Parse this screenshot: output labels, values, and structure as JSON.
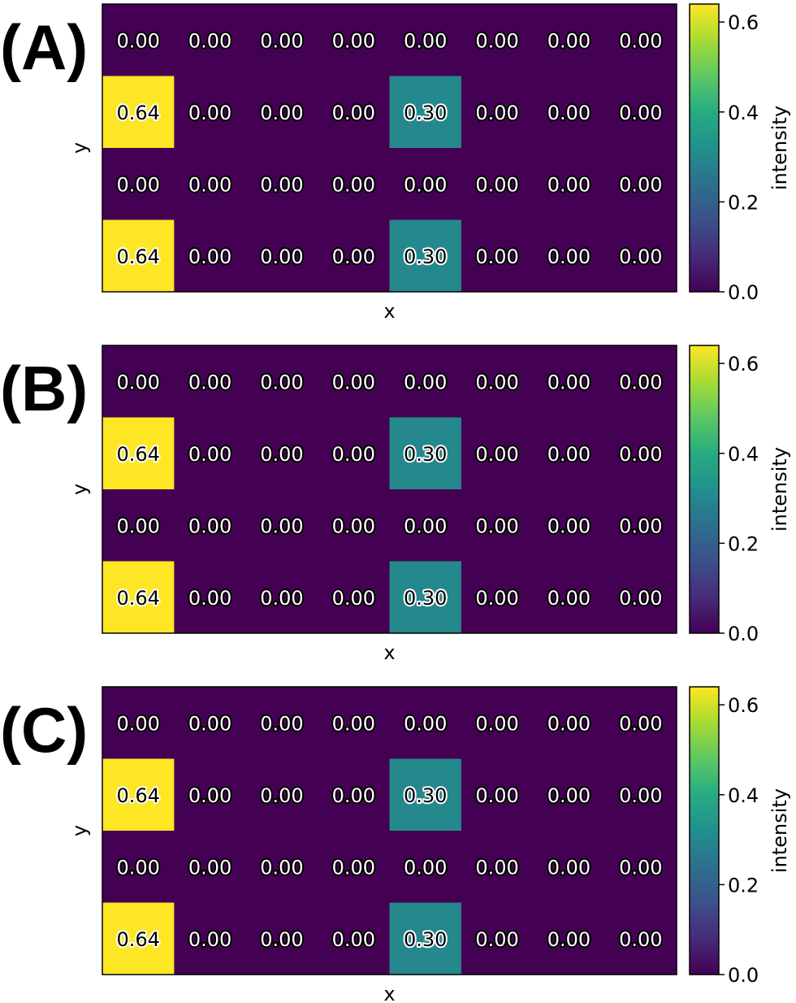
{
  "chart_data": [
    {
      "type": "heatmap",
      "panel_label": "(A)",
      "xlabel": "x",
      "ylabel": "y",
      "colorbar_label": "intensity",
      "colorbar_ticks": [
        "0.0",
        "0.2",
        "0.4",
        "0.6"
      ],
      "colorbar_range": [
        0,
        0.64
      ],
      "colormap": "viridis",
      "values": [
        [
          0.0,
          0.0,
          0.0,
          0.0,
          0.0,
          0.0,
          0.0,
          0.0
        ],
        [
          0.64,
          0.0,
          0.0,
          0.0,
          0.3,
          0.0,
          0.0,
          0.0
        ],
        [
          0.0,
          0.0,
          0.0,
          0.0,
          0.0,
          0.0,
          0.0,
          0.0
        ],
        [
          0.64,
          0.0,
          0.0,
          0.0,
          0.3,
          0.0,
          0.0,
          0.0
        ]
      ],
      "cell_labels": [
        [
          "0.00",
          "0.00",
          "0.00",
          "0.00",
          "0.00",
          "0.00",
          "0.00",
          "0.00"
        ],
        [
          "0.64",
          "0.00",
          "0.00",
          "0.00",
          "0.30",
          "0.00",
          "0.00",
          "0.00"
        ],
        [
          "0.00",
          "0.00",
          "0.00",
          "0.00",
          "0.00",
          "0.00",
          "0.00",
          "0.00"
        ],
        [
          "0.64",
          "0.00",
          "0.00",
          "0.00",
          "0.30",
          "0.00",
          "0.00",
          "0.00"
        ]
      ]
    },
    {
      "type": "heatmap",
      "panel_label": "(B)",
      "xlabel": "x",
      "ylabel": "y",
      "colorbar_label": "intensity",
      "colorbar_ticks": [
        "0.0",
        "0.2",
        "0.4",
        "0.6"
      ],
      "colorbar_range": [
        0,
        0.64
      ],
      "colormap": "viridis",
      "values": [
        [
          0.0,
          0.0,
          0.0,
          0.0,
          0.0,
          0.0,
          0.0,
          0.0
        ],
        [
          0.64,
          0.0,
          0.0,
          0.0,
          0.3,
          0.0,
          0.0,
          0.0
        ],
        [
          0.0,
          0.0,
          0.0,
          0.0,
          0.0,
          0.0,
          0.0,
          0.0
        ],
        [
          0.64,
          0.0,
          0.0,
          0.0,
          0.3,
          0.0,
          0.0,
          0.0
        ]
      ],
      "cell_labels": [
        [
          "0.00",
          "0.00",
          "0.00",
          "0.00",
          "0.00",
          "0.00",
          "0.00",
          "0.00"
        ],
        [
          "0.64",
          "0.00",
          "0.00",
          "0.00",
          "0.30",
          "0.00",
          "0.00",
          "0.00"
        ],
        [
          "0.00",
          "0.00",
          "0.00",
          "0.00",
          "0.00",
          "0.00",
          "0.00",
          "0.00"
        ],
        [
          "0.64",
          "0.00",
          "0.00",
          "0.00",
          "0.30",
          "0.00",
          "0.00",
          "0.00"
        ]
      ]
    },
    {
      "type": "heatmap",
      "panel_label": "(C)",
      "xlabel": "x",
      "ylabel": "y",
      "colorbar_label": "intensity",
      "colorbar_ticks": [
        "0.0",
        "0.2",
        "0.4",
        "0.6"
      ],
      "colorbar_range": [
        0,
        0.64
      ],
      "colormap": "viridis",
      "values": [
        [
          0.0,
          0.0,
          0.0,
          0.0,
          0.0,
          0.0,
          0.0,
          0.0
        ],
        [
          0.64,
          0.0,
          0.0,
          0.0,
          0.3,
          0.0,
          0.0,
          0.0
        ],
        [
          0.0,
          0.0,
          0.0,
          0.0,
          0.0,
          0.0,
          0.0,
          0.0
        ],
        [
          0.64,
          0.0,
          0.0,
          0.0,
          0.3,
          0.0,
          0.0,
          0.0
        ]
      ],
      "cell_labels": [
        [
          "0.00",
          "0.00",
          "0.00",
          "0.00",
          "0.00",
          "0.00",
          "0.00",
          "0.00"
        ],
        [
          "0.64",
          "0.00",
          "0.00",
          "0.00",
          "0.30",
          "0.00",
          "0.00",
          "0.00"
        ],
        [
          "0.00",
          "0.00",
          "0.00",
          "0.00",
          "0.00",
          "0.00",
          "0.00",
          "0.00"
        ],
        [
          "0.64",
          "0.00",
          "0.00",
          "0.00",
          "0.30",
          "0.00",
          "0.00",
          "0.00"
        ]
      ]
    }
  ],
  "colors": {
    "min": "#440154",
    "mid": "#2a788e",
    "max": "#fde725"
  }
}
